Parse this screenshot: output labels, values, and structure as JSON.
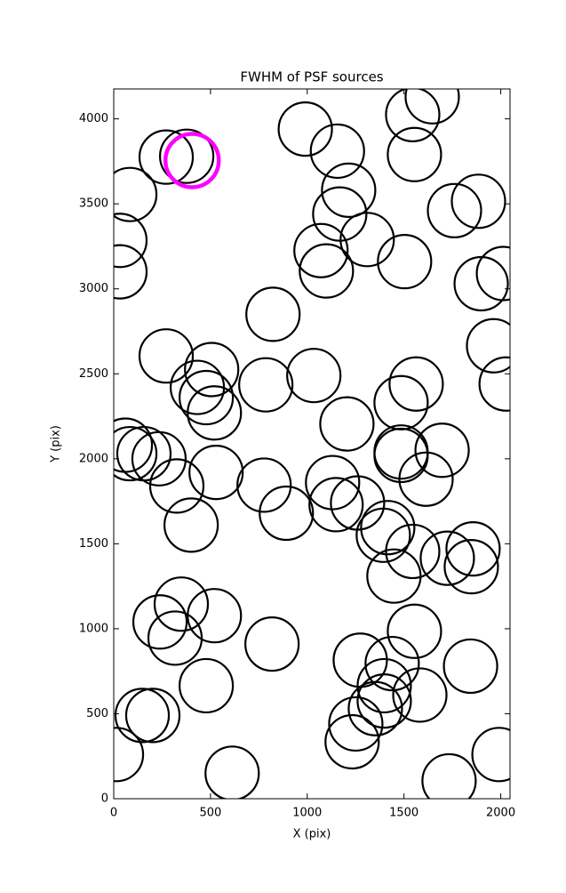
{
  "chart_data": {
    "type": "scatter",
    "title": "FWHM of PSF sources",
    "x_label": "X (pix)",
    "y_label": "Y (pix)",
    "xlim": [
      0,
      2048
    ],
    "ylim": [
      0,
      4176
    ],
    "xticks": [
      0,
      500,
      1000,
      1500,
      2000
    ],
    "yticks": [
      0,
      500,
      1000,
      1500,
      2000,
      2500,
      3000,
      3500,
      4000
    ],
    "grid": false,
    "series": [
      {
        "color": "#000000",
        "x": [
          990,
          1156,
          1545,
          1646,
          1554,
          1214,
          1168,
          1310,
          1071,
          1099,
          1503,
          1761,
          1885,
          1899,
          2014,
          1963,
          2028,
          823,
          271,
          506,
          432,
          478,
          520,
          786,
          1034,
          1563,
          1485,
          1205,
          1485,
          1485,
          1697,
          1614,
          60,
          83,
          156,
          234,
          326,
          529,
          777,
          892,
          1131,
          1149,
          1260,
          1416,
          1393,
          1545,
          1724,
          1857,
          1848,
          1448,
          400,
          349,
          239,
          317,
          520,
          818,
          1554,
          1274,
          1439,
          1844,
          1398,
          1398,
          1352,
          1582,
          1251,
          1232,
          478,
          147,
          202,
          14,
          612,
          1733,
          1991,
          83,
          32,
          32,
          271,
          377
        ],
        "y": [
          3940,
          3810,
          4025,
          4130,
          3790,
          3580,
          3440,
          3290,
          3225,
          3105,
          3160,
          3460,
          3515,
          3030,
          3090,
          2665,
          2440,
          2850,
          2605,
          2525,
          2420,
          2360,
          2270,
          2435,
          2490,
          2440,
          2330,
          2205,
          2040,
          2020,
          2050,
          1880,
          2080,
          2030,
          2030,
          2000,
          1840,
          1920,
          1845,
          1680,
          1860,
          1730,
          1740,
          1595,
          1550,
          1455,
          1415,
          1470,
          1365,
          1310,
          1610,
          1145,
          1040,
          945,
          1077,
          910,
          985,
          815,
          795,
          780,
          665,
          575,
          530,
          610,
          440,
          335,
          665,
          490,
          490,
          260,
          150,
          105,
          260,
          3555,
          3285,
          3100,
          3775,
          3780
        ]
      },
      {
        "color": "#ff00ff",
        "x": [
          405
        ],
        "y": [
          3755
        ]
      }
    ]
  }
}
